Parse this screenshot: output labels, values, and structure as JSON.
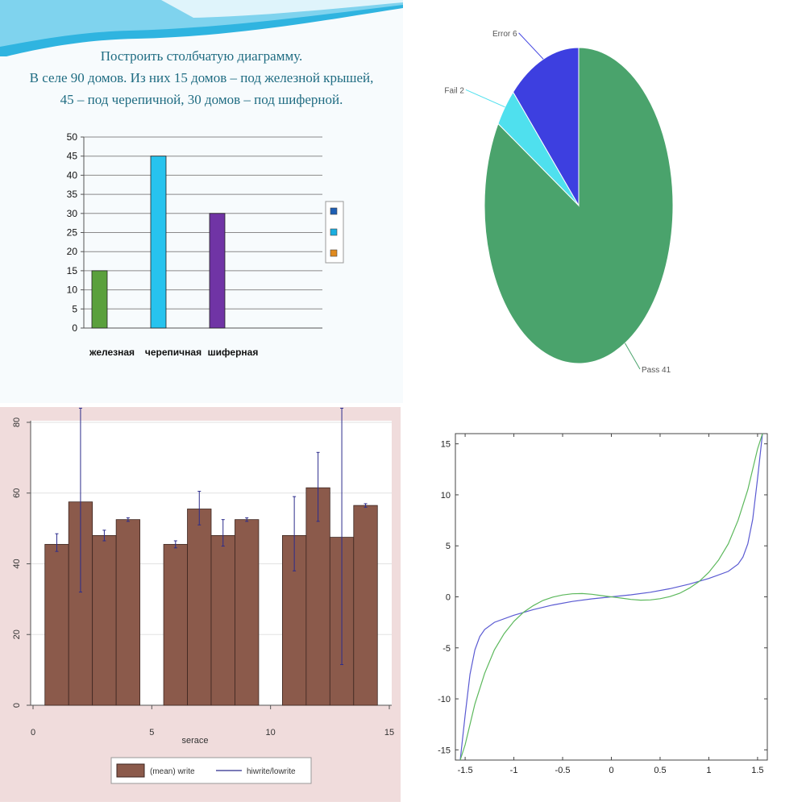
{
  "slide": {
    "title_lines": [
      "Построить столбчатую диаграмму.",
      "В селе 90 домов. Из них 15 домов – под железной крышей,",
      "45 – под  черепичной, 30 домов – под шиферной."
    ]
  },
  "chart_data": [
    {
      "type": "bar",
      "categories": [
        "железная",
        "черепичная",
        "шиферная"
      ],
      "values": [
        15,
        45,
        30
      ],
      "ylim": [
        0,
        50
      ],
      "yticks": [
        0,
        5,
        10,
        15,
        20,
        25,
        30,
        35,
        40,
        45,
        50
      ],
      "grid": true,
      "legend_position": "right",
      "colors": [
        "#5aa03c",
        "#27c3ee",
        "#7034a5"
      ],
      "legend_swatch_colors": [
        "#1e5fb4",
        "#1aaee0",
        "#e08a1e"
      ]
    },
    {
      "type": "pie",
      "slices": [
        {
          "label": "Pass 41",
          "value": 41,
          "color": "#4aa36c"
        },
        {
          "label": "Fail 2",
          "value": 2,
          "color": "#4fe0ee"
        },
        {
          "label": "Error 6",
          "value": 6,
          "color": "#3d3fe0"
        }
      ]
    },
    {
      "type": "bar",
      "xlabel": "serace",
      "xlim": [
        0,
        15
      ],
      "ylim": [
        0,
        80
      ],
      "xticks": [
        "0",
        "5",
        "10",
        "15"
      ],
      "yticks": [
        "0",
        "20",
        "40",
        "60",
        "80"
      ],
      "bar_color": "#8b5a4b",
      "errorbar_color": "#2c2c8c",
      "grid": true,
      "legend_position": "bottom",
      "legend": [
        "(mean) write",
        "hiwrite/lowrite"
      ],
      "x": [
        1,
        2,
        3,
        4,
        6,
        7,
        8,
        9,
        11,
        12,
        13,
        14
      ],
      "values": [
        45.5,
        57.5,
        48,
        52.5,
        45.5,
        55.5,
        48,
        52.5,
        48,
        61.5,
        47.5,
        56.5
      ],
      "error_low": [
        43.5,
        32,
        46.5,
        52,
        44.5,
        51,
        45,
        52,
        38,
        52,
        11.5,
        56
      ],
      "error_high": [
        48.5,
        84,
        49.5,
        53,
        46.5,
        60.5,
        52.5,
        53,
        59,
        71.5,
        84,
        57
      ]
    },
    {
      "type": "line",
      "xlim": [
        -1.6,
        1.6
      ],
      "ylim": [
        -16,
        16
      ],
      "xticks": [
        -1.5,
        -1,
        -0.5,
        0,
        0.5,
        1,
        1.5
      ],
      "yticks": [
        -15,
        -10,
        -5,
        0,
        5,
        10,
        15
      ],
      "series": [
        {
          "color": "#5a5ad2",
          "x": [
            -1.55,
            -1.5,
            -1.45,
            -1.4,
            -1.35,
            -1.3,
            -1.2,
            -1.0,
            -0.8,
            -0.6,
            -0.4,
            -0.2,
            0,
            0.2,
            0.4,
            0.6,
            0.8,
            1.0,
            1.2,
            1.3,
            1.35,
            1.4,
            1.45,
            1.5,
            1.55
          ],
          "y": [
            -16,
            -11.6,
            -7.6,
            -5.2,
            -3.9,
            -3.2,
            -2.5,
            -1.8,
            -1.25,
            -0.8,
            -0.45,
            -0.2,
            0,
            0.2,
            0.45,
            0.8,
            1.25,
            1.8,
            2.5,
            3.2,
            3.9,
            5.2,
            7.6,
            11.6,
            16
          ]
        },
        {
          "color": "#5cb85c",
          "x": [
            -1.55,
            -1.5,
            -1.4,
            -1.3,
            -1.2,
            -1.1,
            -1.0,
            -0.9,
            -0.8,
            -0.7,
            -0.6,
            -0.5,
            -0.4,
            -0.3,
            -0.2,
            -0.1,
            0,
            0.1,
            0.2,
            0.3,
            0.4,
            0.5,
            0.6,
            0.7,
            0.8,
            0.9,
            1.0,
            1.1,
            1.2,
            1.3,
            1.4,
            1.5,
            1.55
          ],
          "y": [
            -16,
            -14.5,
            -10.5,
            -7.5,
            -5.2,
            -3.6,
            -2.4,
            -1.5,
            -0.85,
            -0.35,
            -0.02,
            0.18,
            0.3,
            0.32,
            0.25,
            0.12,
            0,
            -0.12,
            -0.25,
            -0.32,
            -0.3,
            -0.18,
            0.02,
            0.35,
            0.85,
            1.5,
            2.4,
            3.6,
            5.2,
            7.5,
            10.5,
            14.5,
            16
          ]
        }
      ]
    }
  ]
}
